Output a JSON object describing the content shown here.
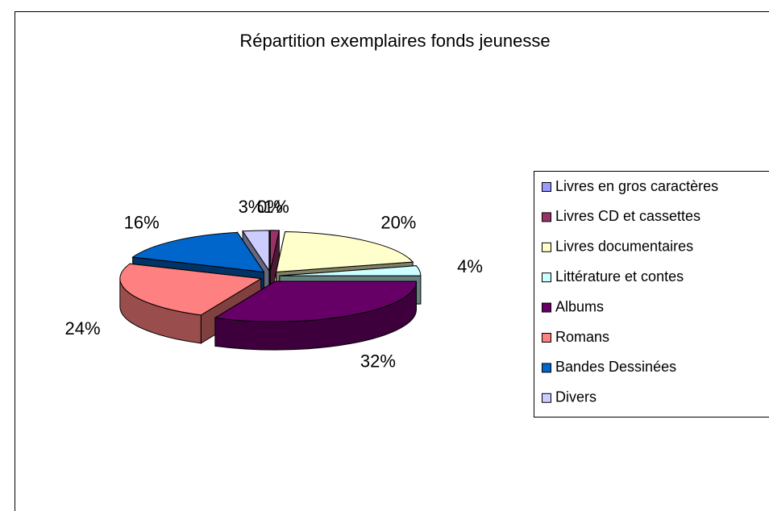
{
  "chart_data": {
    "type": "pie3d",
    "title": "Répartition exemplaires fonds jeunesse",
    "categories": [
      "Livres en gros caractères",
      "Livres CD et cassettes",
      "Livres documentaires",
      "Littérature et contes",
      "Albums",
      "Romans",
      "Bandes Dessinées",
      "Divers"
    ],
    "values": [
      0,
      1,
      20,
      4,
      32,
      24,
      16,
      3
    ],
    "value_labels": [
      "0%",
      "1%",
      "20%",
      "4%",
      "32%",
      "24%",
      "16%",
      "3%"
    ],
    "colors": [
      "#9999ff",
      "#993366",
      "#ffffcc",
      "#ccffff",
      "#660066",
      "#ff8080",
      "#0066cc",
      "#ccccff"
    ],
    "legend": "right"
  }
}
